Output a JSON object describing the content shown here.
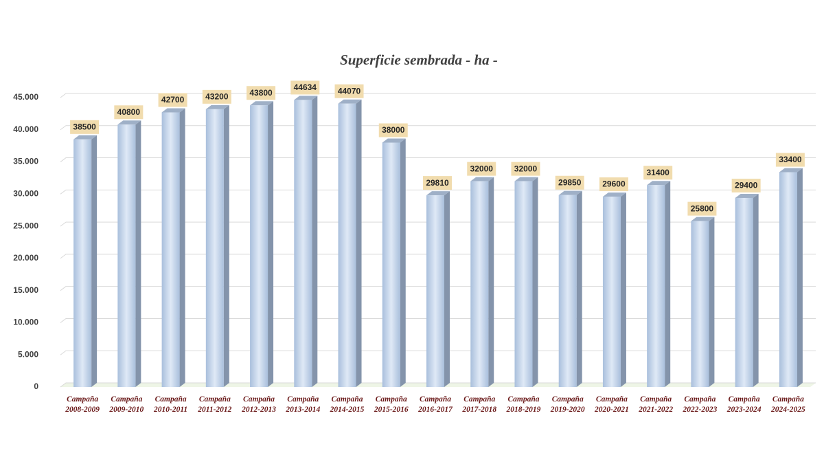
{
  "chart_data": {
    "type": "bar",
    "title": "Superficie sembrada - ha -",
    "categories": [
      "Campaña 2008-2009",
      "Campaña 2009-2010",
      "Campaña 2010-2011",
      "Campaña 2011-2012",
      "Campaña 2012-2013",
      "Campaña 2013-2014",
      "Campaña 2014-2015",
      "Campaña 2015-2016",
      "Campaña 2016-2017",
      "Campaña 2017-2018",
      "Campaña 2018-2019",
      "Campaña 2019-2020",
      "Campaña 2020-2021",
      "Campaña 2021-2022",
      "Campaña 2022-2023",
      "Campaña 2023-2024",
      "Campaña 2024-2025"
    ],
    "values": [
      38500,
      40800,
      42700,
      43200,
      43800,
      44634,
      44070,
      38000,
      29810,
      32000,
      32000,
      29850,
      29600,
      31400,
      25800,
      29400,
      33400
    ],
    "color": "#b8cce4",
    "ylim": [
      0,
      45000
    ],
    "yticks": [
      0,
      {
        "value": 5000,
        "label": "5.000"
      },
      {
        "value": 10000,
        "label": "10.000"
      },
      {
        "value": 15000,
        "label": "15.000"
      },
      {
        "value": 20000,
        "label": "20.000"
      },
      {
        "value": 25000,
        "label": "25.000"
      },
      {
        "value": 30000,
        "label": "30.000"
      },
      {
        "value": 35000,
        "label": "35.000"
      },
      {
        "value": 40000,
        "label": "40.000"
      },
      {
        "value": 45000,
        "label": "45.000"
      }
    ],
    "grid": true
  }
}
